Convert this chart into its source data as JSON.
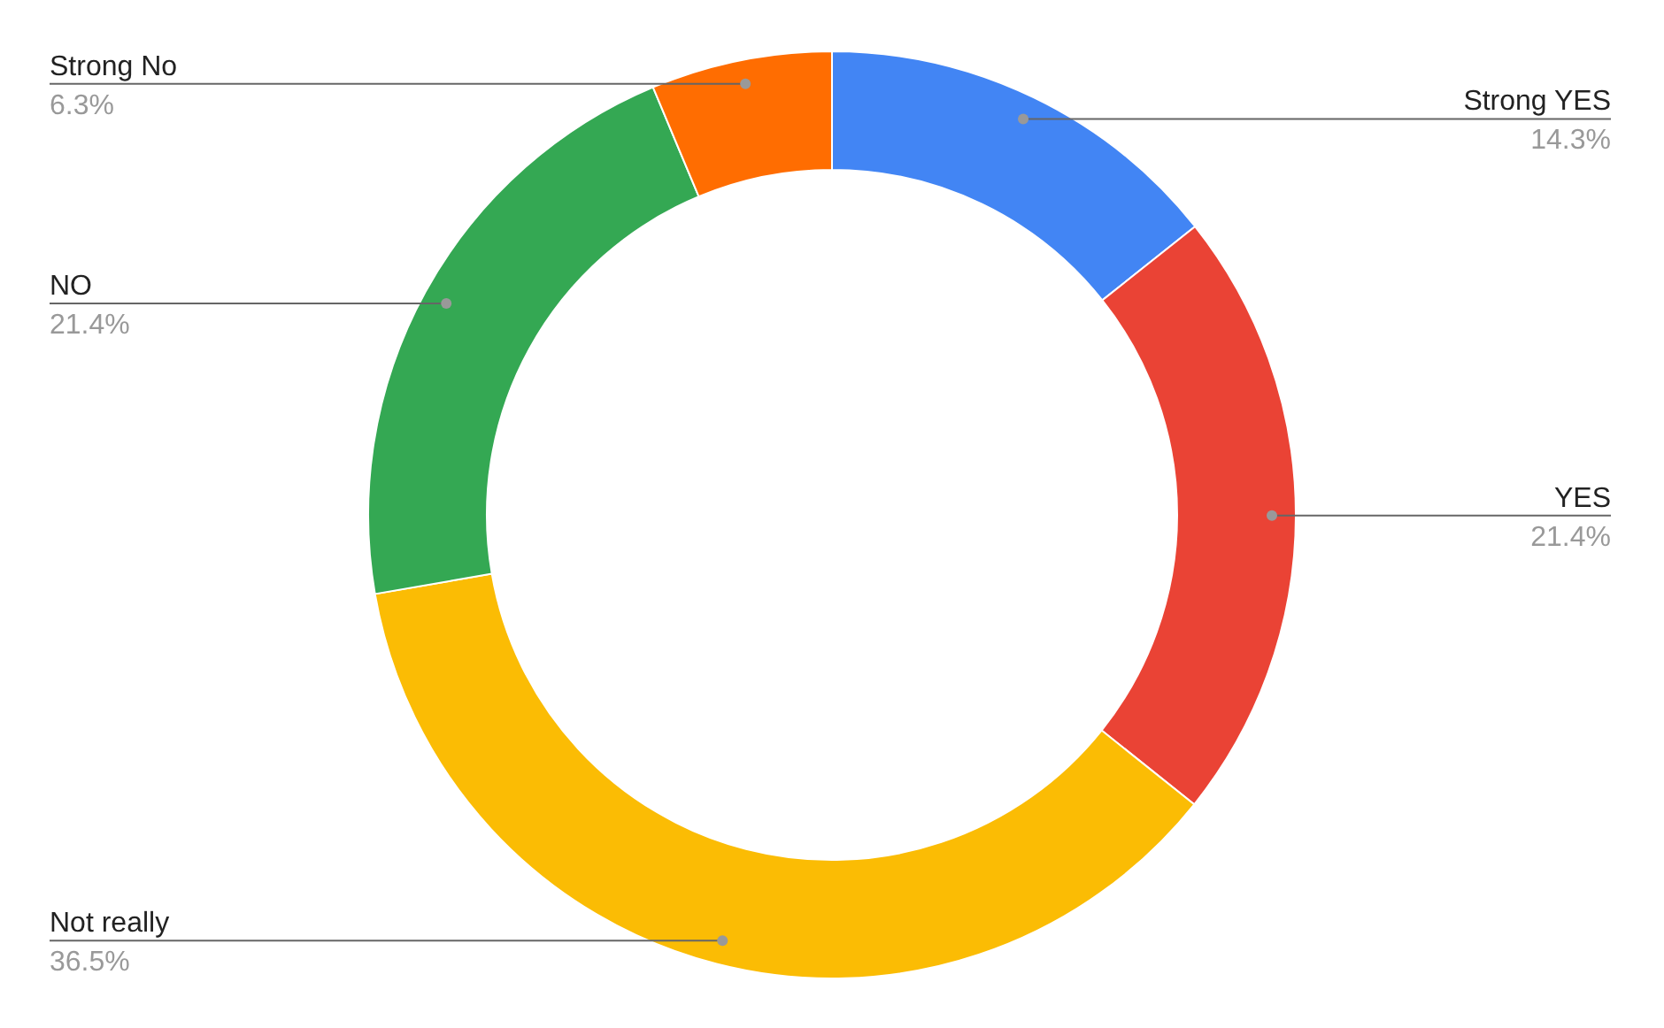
{
  "chart_data": {
    "type": "donut",
    "categories": [
      "Strong YES",
      "YES",
      "Not really",
      "NO",
      "Strong No"
    ],
    "values": [
      14.3,
      21.4,
      36.5,
      21.4,
      6.3
    ],
    "colors": [
      "#4285f4",
      "#ea4335",
      "#fbbc04",
      "#34a853",
      "#ff6d01"
    ],
    "value_labels": [
      "14.3%",
      "21.4%",
      "36.5%",
      "21.4%",
      "6.3%"
    ]
  }
}
